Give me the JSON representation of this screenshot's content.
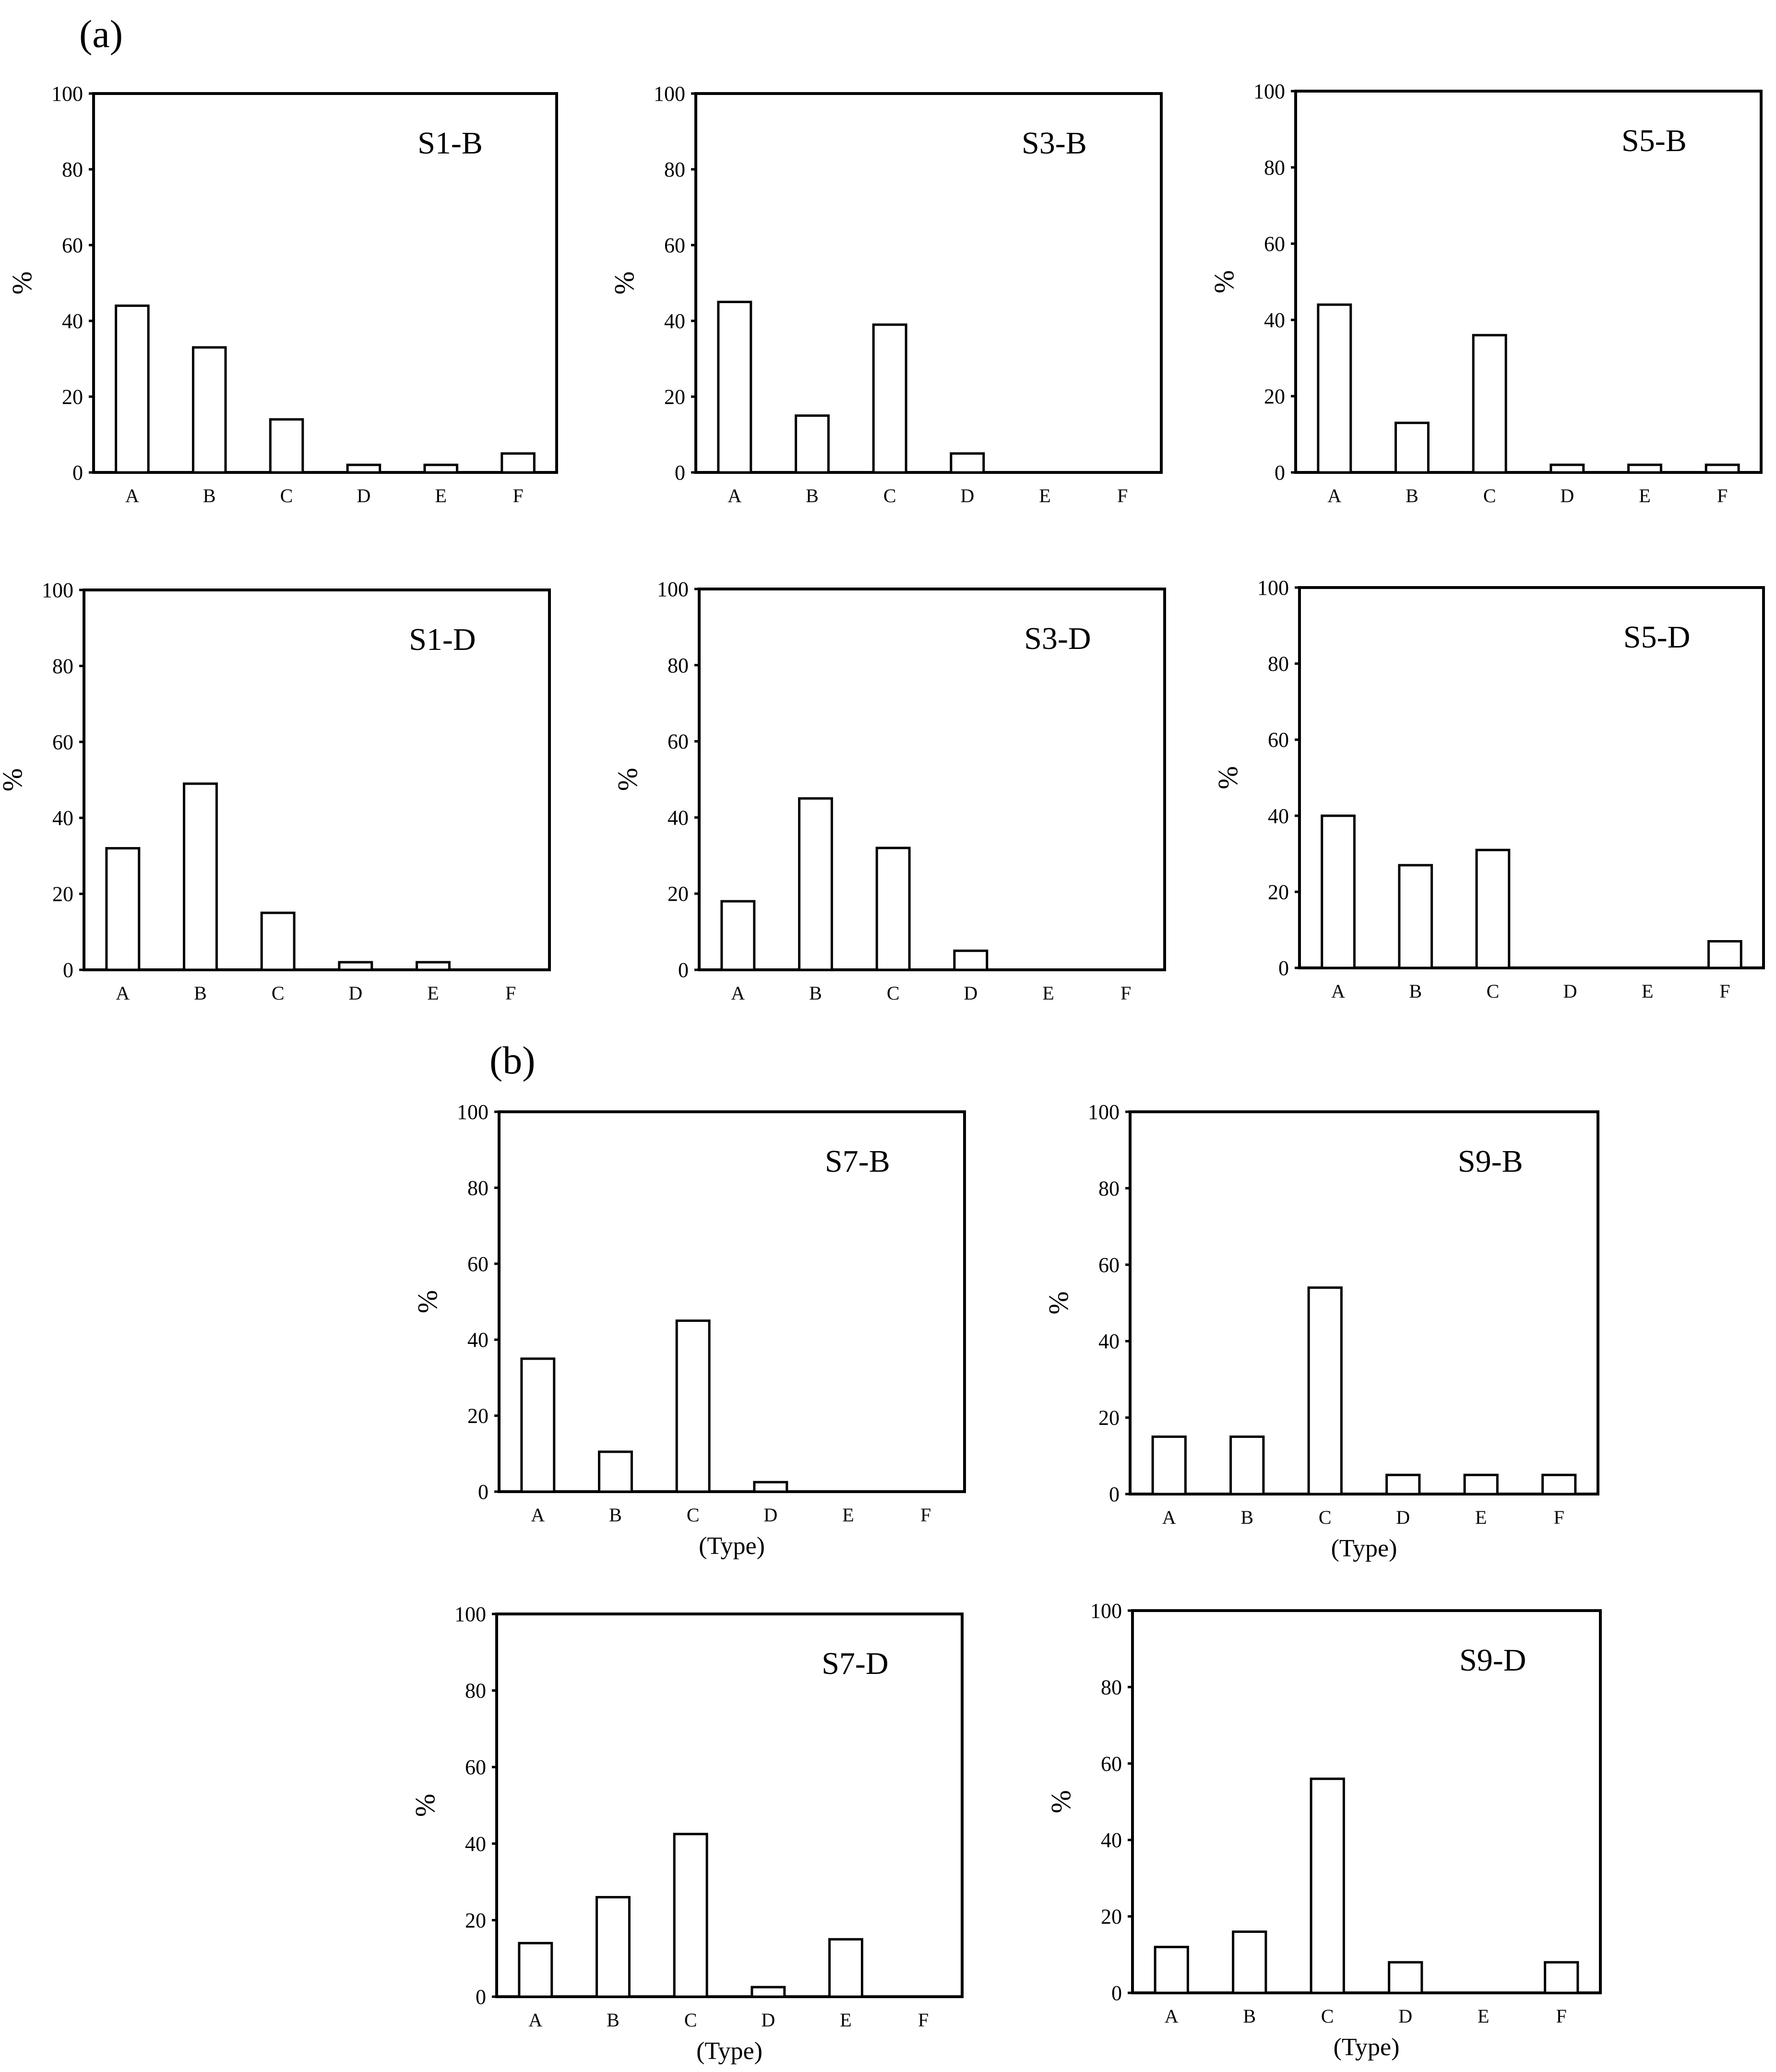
{
  "panel_labels": {
    "a": "(a)",
    "b": "(b)"
  },
  "chart_data": [
    {
      "id": "s1b",
      "type": "bar",
      "title": "S1-B",
      "ylabel": "%",
      "xlabel": "",
      "ylim": [
        0,
        100
      ],
      "yticks": [
        "0",
        "20",
        "40",
        "60",
        "80",
        "100"
      ],
      "categories": [
        "A",
        "B",
        "C",
        "D",
        "E",
        "F"
      ],
      "values": [
        44,
        33,
        14,
        2,
        2,
        5
      ]
    },
    {
      "id": "s3b",
      "type": "bar",
      "title": "S3-B",
      "ylabel": "%",
      "xlabel": "",
      "ylim": [
        0,
        100
      ],
      "yticks": [
        "0",
        "20",
        "40",
        "60",
        "80",
        "100"
      ],
      "categories": [
        "A",
        "B",
        "C",
        "D",
        "E",
        "F"
      ],
      "values": [
        45,
        15,
        39,
        5,
        0,
        0
      ]
    },
    {
      "id": "s5b",
      "type": "bar",
      "title": "S5-B",
      "ylabel": "%",
      "xlabel": "",
      "ylim": [
        0,
        100
      ],
      "yticks": [
        "0",
        "20",
        "40",
        "60",
        "80",
        "100"
      ],
      "categories": [
        "A",
        "B",
        "C",
        "D",
        "E",
        "F"
      ],
      "values": [
        44,
        13,
        36,
        2,
        2,
        2
      ]
    },
    {
      "id": "s1d",
      "type": "bar",
      "title": "S1-D",
      "ylabel": "%",
      "xlabel": "",
      "ylim": [
        0,
        100
      ],
      "yticks": [
        "0",
        "20",
        "40",
        "60",
        "80",
        "100"
      ],
      "categories": [
        "A",
        "B",
        "C",
        "D",
        "E",
        "F"
      ],
      "values": [
        32,
        49,
        15,
        2,
        2,
        0
      ]
    },
    {
      "id": "s3d",
      "type": "bar",
      "title": "S3-D",
      "ylabel": "%",
      "xlabel": "",
      "ylim": [
        0,
        100
      ],
      "yticks": [
        "0",
        "20",
        "40",
        "60",
        "80",
        "100"
      ],
      "categories": [
        "A",
        "B",
        "C",
        "D",
        "E",
        "F"
      ],
      "values": [
        18,
        45,
        32,
        5,
        0,
        0
      ]
    },
    {
      "id": "s5d",
      "type": "bar",
      "title": "S5-D",
      "ylabel": "%",
      "xlabel": "",
      "ylim": [
        0,
        100
      ],
      "yticks": [
        "0",
        "20",
        "40",
        "60",
        "80",
        "100"
      ],
      "categories": [
        "A",
        "B",
        "C",
        "D",
        "E",
        "F"
      ],
      "values": [
        40,
        27,
        31,
        0,
        0,
        7
      ]
    },
    {
      "id": "s7b",
      "type": "bar",
      "title": "S7-B",
      "ylabel": "%",
      "xlabel": "(Type)",
      "ylim": [
        0,
        100
      ],
      "yticks": [
        "0",
        "20",
        "40",
        "60",
        "80",
        "100"
      ],
      "categories": [
        "A",
        "B",
        "C",
        "D",
        "E",
        "F"
      ],
      "values": [
        35,
        10.5,
        45,
        2.5,
        0,
        0
      ]
    },
    {
      "id": "s9b",
      "type": "bar",
      "title": "S9-B",
      "ylabel": "%",
      "xlabel": "(Type)",
      "ylim": [
        0,
        100
      ],
      "yticks": [
        "0",
        "20",
        "40",
        "60",
        "80",
        "100"
      ],
      "categories": [
        "A",
        "B",
        "C",
        "D",
        "E",
        "F"
      ],
      "values": [
        15,
        15,
        54,
        5,
        5,
        5
      ]
    },
    {
      "id": "s7d",
      "type": "bar",
      "title": "S7-D",
      "ylabel": "%",
      "xlabel": "(Type)",
      "ylim": [
        0,
        100
      ],
      "yticks": [
        "0",
        "20",
        "40",
        "60",
        "80",
        "100"
      ],
      "categories": [
        "A",
        "B",
        "C",
        "D",
        "E",
        "F"
      ],
      "values": [
        14,
        26,
        42.5,
        2.5,
        15,
        0
      ]
    },
    {
      "id": "s9d",
      "type": "bar",
      "title": "S9-D",
      "ylabel": "%",
      "xlabel": "(Type)",
      "ylim": [
        0,
        100
      ],
      "yticks": [
        "0",
        "20",
        "40",
        "60",
        "80",
        "100"
      ],
      "categories": [
        "A",
        "B",
        "C",
        "D",
        "E",
        "F"
      ],
      "values": [
        12,
        16,
        56,
        8,
        0,
        8
      ]
    }
  ]
}
